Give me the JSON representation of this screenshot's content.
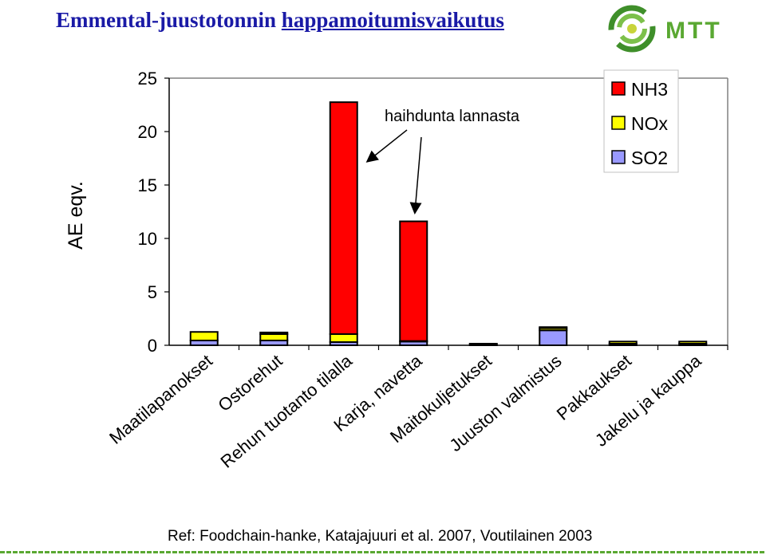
{
  "header": {
    "title_part1": "Emmental-juustotonnin ",
    "title_part2": "happamoitumisvaikutus",
    "logo_text": "MTT"
  },
  "footer": {
    "reference": "Ref: Foodchain-hanke, Katajajuuri et al. 2007, Voutilainen 2003"
  },
  "colors": {
    "title": "#1a1aa6",
    "NH3": "#ff0000",
    "NOx": "#ffff00",
    "SO2": "#9999ff",
    "logo_green": "#5aa832"
  },
  "chart_data": {
    "type": "bar",
    "stacked": true,
    "ylabel": "AE eqv.",
    "ylim": [
      0,
      25
    ],
    "yticks": [
      0,
      5,
      10,
      15,
      20,
      25
    ],
    "grid": false,
    "legend_position": "top-right",
    "categories": [
      "Maatilapanokset",
      "Ostorehut",
      "Rehun tuotanto tilalla",
      "Karja, navetta",
      "Maitokuljetukset",
      "Juuston valmistus",
      "Pakkaukset",
      "Jakelu ja kauppa"
    ],
    "series": [
      {
        "name": "SO2",
        "color": "#9999ff",
        "values": [
          0.45,
          0.45,
          0.3,
          0.35,
          0.05,
          1.4,
          0.15,
          0.15
        ]
      },
      {
        "name": "NOx",
        "color": "#ffff00",
        "values": [
          0.8,
          0.6,
          0.75,
          0.05,
          0.1,
          0.2,
          0.2,
          0.2
        ]
      },
      {
        "name": "NH3",
        "color": "#ff0000",
        "values": [
          0.0,
          0.15,
          21.7,
          11.2,
          0.0,
          0.1,
          0.0,
          0.0
        ]
      }
    ],
    "annotation": {
      "text": "haihdunta lannasta",
      "targets": [
        "Rehun tuotanto tilalla",
        "Karja, navetta"
      ]
    }
  }
}
